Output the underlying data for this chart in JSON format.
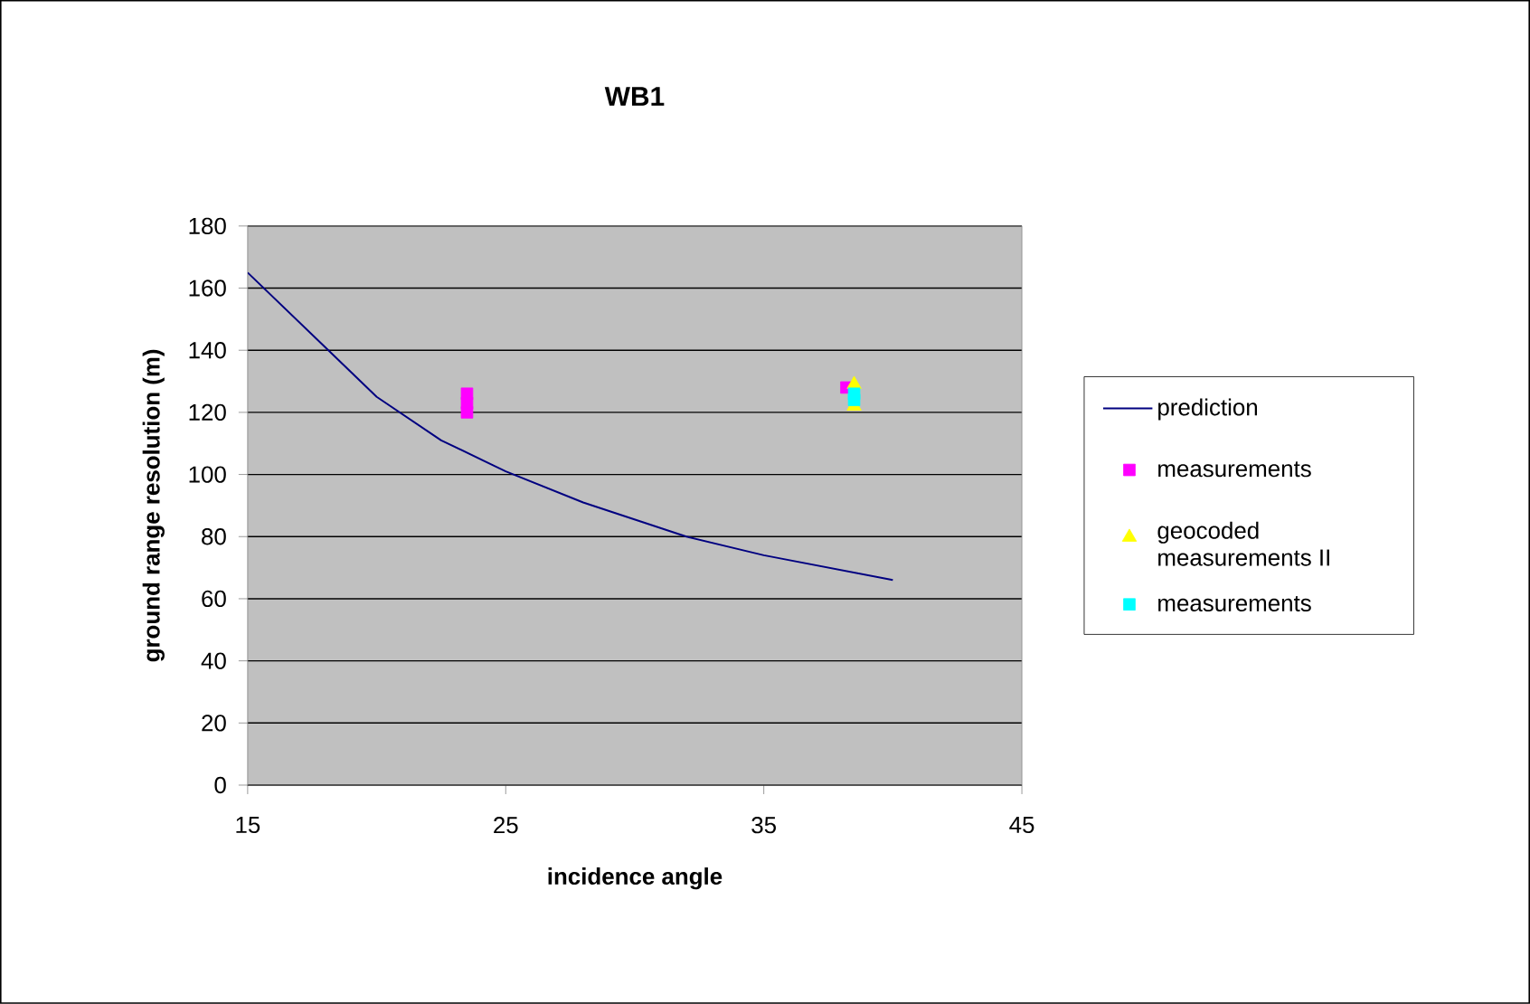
{
  "chart_data": {
    "type": "line",
    "title": "WB1",
    "xlabel": "incidence angle",
    "ylabel": "ground range resolution (m)",
    "xlim": [
      15,
      45
    ],
    "xticks": [
      15,
      25,
      35,
      45
    ],
    "ylim": [
      0,
      180
    ],
    "yticks": [
      0,
      20,
      40,
      60,
      80,
      100,
      120,
      140,
      160,
      180
    ],
    "grid": "y",
    "legend": "right",
    "series": [
      {
        "name": "prediction",
        "type": "line",
        "color": "#000080",
        "marker": "none",
        "x": [
          15,
          18,
          19,
          20,
          22.5,
          25,
          28,
          32,
          35,
          40
        ],
        "values": [
          165,
          141,
          133,
          125,
          111,
          101,
          91,
          80,
          74,
          66
        ]
      },
      {
        "name": "measurements",
        "type": "scatter",
        "color": "#ff00ff",
        "marker": "square",
        "x": [
          23.5,
          23.5,
          23.5,
          38.2
        ],
        "values": [
          120,
          123,
          126,
          128
        ]
      },
      {
        "name": "geocoded measurements II",
        "type": "scatter",
        "color": "#ffff00",
        "marker": "triangle",
        "x": [
          38.5,
          38.5
        ],
        "values": [
          122,
          129
        ]
      },
      {
        "name": "measurements",
        "type": "scatter",
        "color": "#00ffff",
        "marker": "square",
        "x": [
          38.5,
          38.5
        ],
        "values": [
          124,
          126
        ]
      }
    ]
  }
}
